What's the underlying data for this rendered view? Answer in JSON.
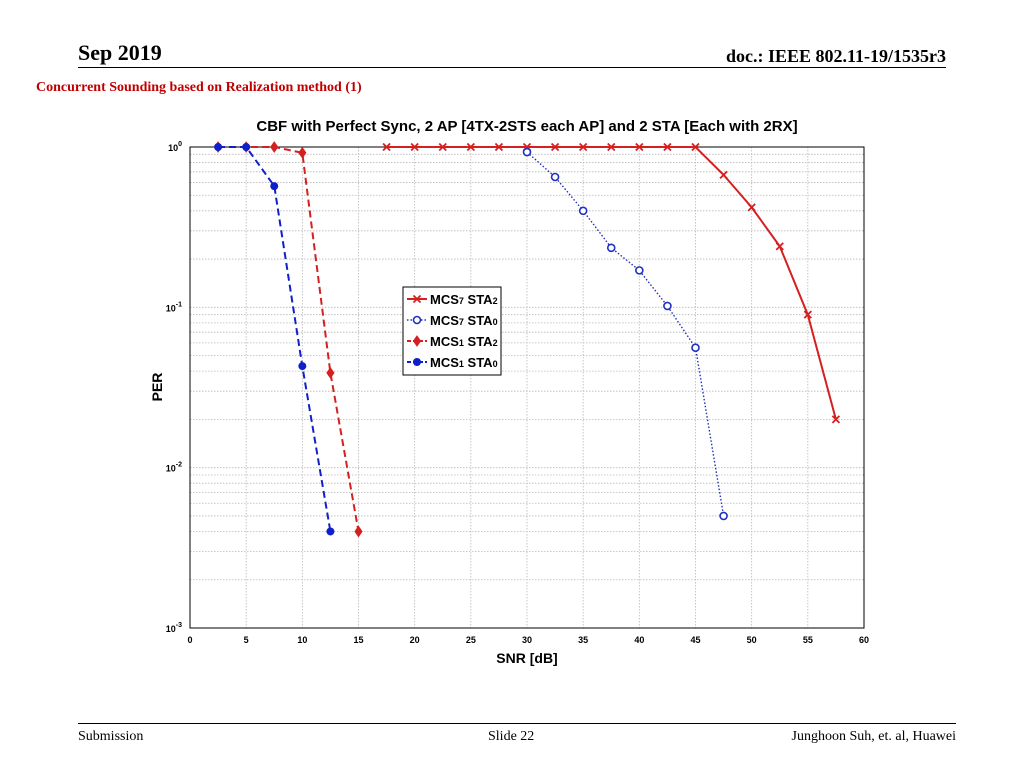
{
  "header": {
    "date": "Sep 2019",
    "doc": "doc.: IEEE 802.11-19/1535r3"
  },
  "subtitle": "Concurrent Sounding based on Realization method (1)",
  "footer": {
    "left": "Submission",
    "center": "Slide 22",
    "right": "Junghoon Suh, et. al, Huawei"
  },
  "chart_data": {
    "type": "line",
    "title": "CBF with Perfect Sync, 2 AP [4TX-2STS each AP] and 2 STA [Each with 2RX]",
    "xlabel": "SNR [dB]",
    "ylabel": "PER",
    "xlim": [
      0,
      60
    ],
    "ylim": [
      0.001,
      1
    ],
    "yscale": "log",
    "grid": true,
    "legend_position": "center-left",
    "x_ticks": [
      "0",
      "5",
      "10",
      "15",
      "20",
      "25",
      "30",
      "35",
      "40",
      "45",
      "50",
      "55",
      "60"
    ],
    "y_ticks": [
      {
        "value": 1,
        "base": "10",
        "exp": "0"
      },
      {
        "value": 0.1,
        "base": "10",
        "exp": "-1"
      },
      {
        "value": 0.01,
        "base": "10",
        "exp": "-2"
      },
      {
        "value": 0.001,
        "base": "10",
        "exp": "-3"
      }
    ],
    "series": [
      {
        "name": "MCS7 STA2",
        "base": "MCS",
        "sub1": "7",
        "mid": " STA",
        "sub2": "2",
        "color": "#d42020",
        "dash": "solid",
        "marker": "x",
        "x": [
          17.5,
          20,
          22.5,
          25,
          27.5,
          30,
          32.5,
          35,
          37.5,
          40,
          42.5,
          45,
          47.5,
          50,
          52.5,
          55,
          57.5
        ],
        "y": [
          1,
          1,
          1,
          1,
          1,
          1,
          1,
          1,
          1,
          1,
          1,
          1,
          0.67,
          0.42,
          0.24,
          0.09,
          0.02
        ]
      },
      {
        "name": "MCS7 STA0",
        "base": "MCS",
        "sub1": "7",
        "mid": " STA",
        "sub2": "0",
        "color": "#2030c0",
        "dash": "dotted",
        "marker": "o",
        "x": [
          30,
          32.5,
          35,
          37.5,
          40,
          42.5,
          45,
          47.5
        ],
        "y": [
          0.93,
          0.65,
          0.4,
          0.235,
          0.17,
          0.102,
          0.056,
          0.005
        ]
      },
      {
        "name": "MCS1 STA2",
        "base": "MCS",
        "sub1": "1",
        "mid": " STA",
        "sub2": "2",
        "color": "#d42020",
        "dash": "dashed",
        "marker": "diamond",
        "x": [
          2.5,
          5,
          7.5,
          10,
          12.5,
          15
        ],
        "y": [
          1,
          1,
          1,
          0.92,
          0.039,
          0.004
        ]
      },
      {
        "name": "MCS1 STA0",
        "base": "MCS",
        "sub1": "1",
        "mid": " STA",
        "sub2": "0",
        "color": "#1020c8",
        "dash": "dashed",
        "marker": "dot",
        "x": [
          2.5,
          5,
          7.5,
          10,
          12.5
        ],
        "y": [
          1,
          1,
          0.57,
          0.043,
          0.004
        ]
      }
    ]
  }
}
